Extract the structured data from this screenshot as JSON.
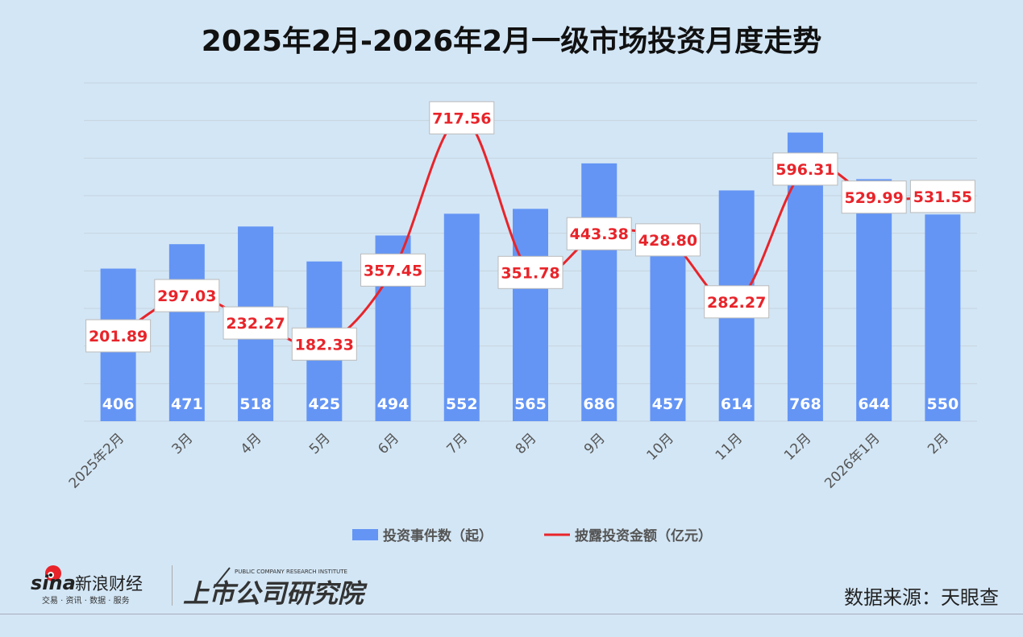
{
  "chart_data": {
    "type": "bar+line",
    "title": "2025年2月-2026年2月一级市场投资月度走势",
    "categories": [
      "2025年2月",
      "3月",
      "4月",
      "5月",
      "6月",
      "7月",
      "8月",
      "9月",
      "10月",
      "11月",
      "12月",
      "2026年1月",
      "2月"
    ],
    "series": [
      {
        "name": "投资事件数（起）",
        "type": "bar",
        "color": "#6495f5",
        "values": [
          406,
          471,
          518,
          425,
          494,
          552,
          565,
          686,
          457,
          614,
          768,
          644,
          550
        ],
        "axis_range": [
          0,
          900
        ]
      },
      {
        "name": "披露投资金额（亿元）",
        "type": "line",
        "color": "#e8242a",
        "values": [
          201.89,
          297.03,
          232.27,
          182.33,
          357.45,
          717.56,
          351.78,
          443.38,
          428.8,
          282.27,
          596.31,
          529.99,
          531.55
        ],
        "labels": [
          "201.89",
          "297.03",
          "232.27",
          "182.33",
          "357.45",
          "717.56",
          "351.78",
          "443.38",
          "428.80",
          "282.27",
          "596.31",
          "529.99",
          "531.55"
        ],
        "axis_range": [
          0,
          800
        ]
      }
    ],
    "grid": true,
    "legend": "bottom"
  },
  "source": "数据来源：天眼查",
  "logos": {
    "sina": "sina新浪财经",
    "sina_sub": "交易 · 资讯 · 数据 · 服务",
    "institute": "上市公司研究院",
    "institute_en": "PUBLIC COMPANY RESEARCH INSTITUTE"
  }
}
